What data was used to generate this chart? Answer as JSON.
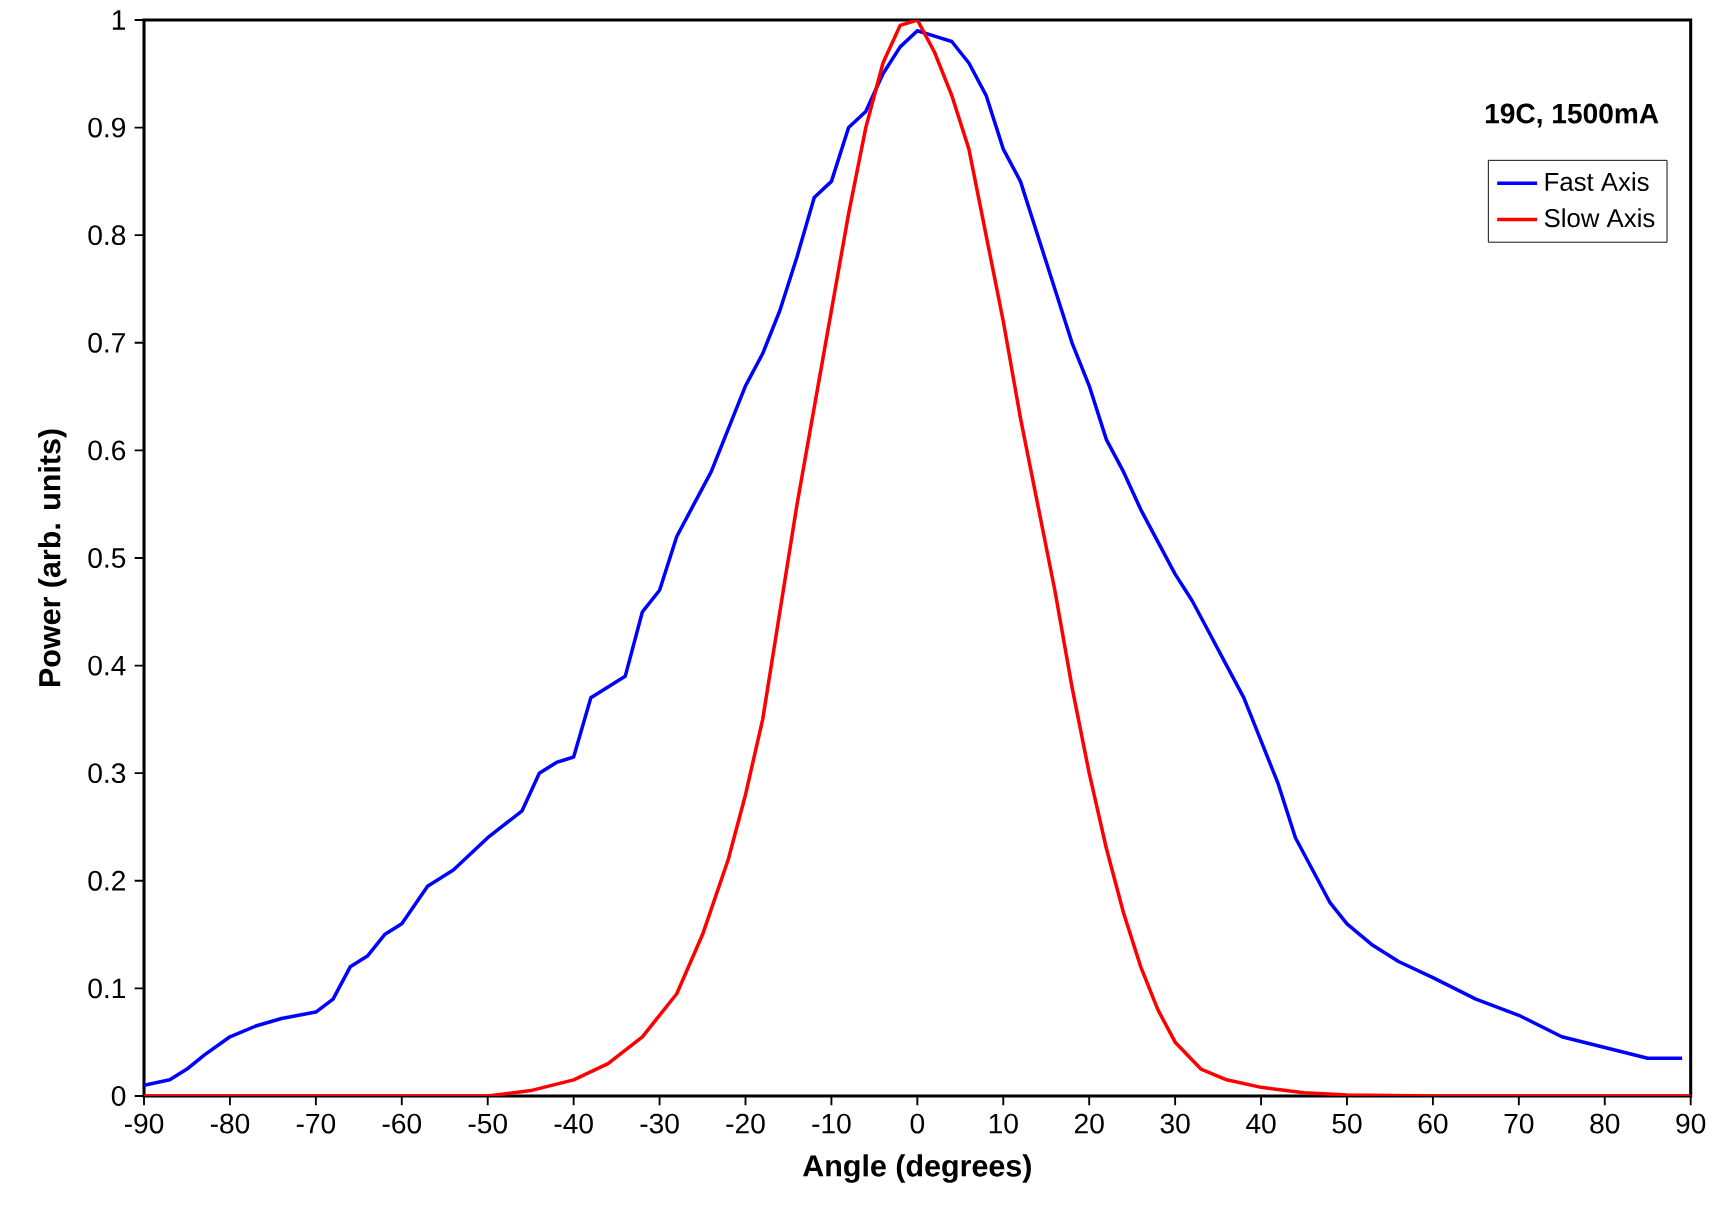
{
  "chart_data": {
    "type": "line",
    "xlabel": "Angle (degrees)",
    "ylabel": "Power (arb. units)",
    "annotations": [
      "19C, 1500mA"
    ],
    "xlim": [
      -90,
      90
    ],
    "xticks": [
      -90,
      -80,
      -70,
      -60,
      -50,
      -40,
      -30,
      -20,
      -10,
      0,
      10,
      20,
      30,
      40,
      50,
      60,
      70,
      80,
      90
    ],
    "ylim": [
      0,
      1
    ],
    "yticks": [
      0,
      0.1,
      0.2,
      0.3,
      0.4,
      0.5,
      0.6,
      0.7,
      0.8,
      0.9,
      1
    ],
    "grid": false,
    "legend": "top right",
    "marker": "none",
    "line_style": "solid",
    "series": [
      {
        "name": "Fast Axis",
        "color": "#0000ff",
        "x": [
          -90,
          -87,
          -85,
          -83,
          -80,
          -77,
          -74,
          -70,
          -68,
          -66,
          -64,
          -62,
          -60,
          -57,
          -54,
          -50,
          -46,
          -44,
          -42,
          -40,
          -38,
          -36,
          -34,
          -32,
          -30,
          -28,
          -26,
          -24,
          -22,
          -20,
          -18,
          -16,
          -14,
          -12,
          -10,
          -8,
          -6,
          -4,
          -2,
          0,
          2,
          4,
          6,
          8,
          10,
          12,
          14,
          16,
          18,
          20,
          22,
          24,
          26,
          28,
          30,
          32,
          34,
          36,
          38,
          40,
          42,
          44,
          46,
          48,
          50,
          53,
          56,
          60,
          65,
          70,
          75,
          80,
          85,
          89
        ],
        "values": [
          0.01,
          0.015,
          0.025,
          0.038,
          0.055,
          0.065,
          0.072,
          0.078,
          0.09,
          0.12,
          0.13,
          0.15,
          0.16,
          0.195,
          0.21,
          0.24,
          0.265,
          0.3,
          0.31,
          0.315,
          0.37,
          0.38,
          0.39,
          0.45,
          0.47,
          0.52,
          0.55,
          0.58,
          0.62,
          0.66,
          0.69,
          0.73,
          0.78,
          0.835,
          0.85,
          0.9,
          0.915,
          0.95,
          0.975,
          0.99,
          0.985,
          0.98,
          0.96,
          0.93,
          0.88,
          0.85,
          0.8,
          0.75,
          0.7,
          0.66,
          0.61,
          0.58,
          0.545,
          0.515,
          0.485,
          0.46,
          0.43,
          0.4,
          0.37,
          0.33,
          0.29,
          0.24,
          0.21,
          0.18,
          0.16,
          0.14,
          0.125,
          0.11,
          0.09,
          0.075,
          0.055,
          0.045,
          0.035,
          0.035
        ]
      },
      {
        "name": "Slow Axis",
        "color": "#ff0000",
        "x": [
          -90,
          -70,
          -50,
          -45,
          -40,
          -36,
          -32,
          -28,
          -25,
          -22,
          -20,
          -18,
          -16,
          -14,
          -12,
          -10,
          -8,
          -6,
          -4,
          -2,
          0,
          2,
          4,
          6,
          8,
          10,
          12,
          14,
          16,
          18,
          20,
          22,
          24,
          26,
          28,
          30,
          33,
          36,
          40,
          45,
          50,
          60,
          90
        ],
        "values": [
          0,
          0,
          0,
          0.005,
          0.015,
          0.03,
          0.055,
          0.095,
          0.15,
          0.22,
          0.28,
          0.35,
          0.45,
          0.55,
          0.64,
          0.73,
          0.82,
          0.9,
          0.96,
          0.995,
          1.0,
          0.97,
          0.93,
          0.88,
          0.8,
          0.72,
          0.63,
          0.55,
          0.47,
          0.38,
          0.3,
          0.23,
          0.17,
          0.12,
          0.08,
          0.05,
          0.025,
          0.015,
          0.008,
          0.003,
          0.001,
          0,
          0
        ]
      }
    ]
  }
}
